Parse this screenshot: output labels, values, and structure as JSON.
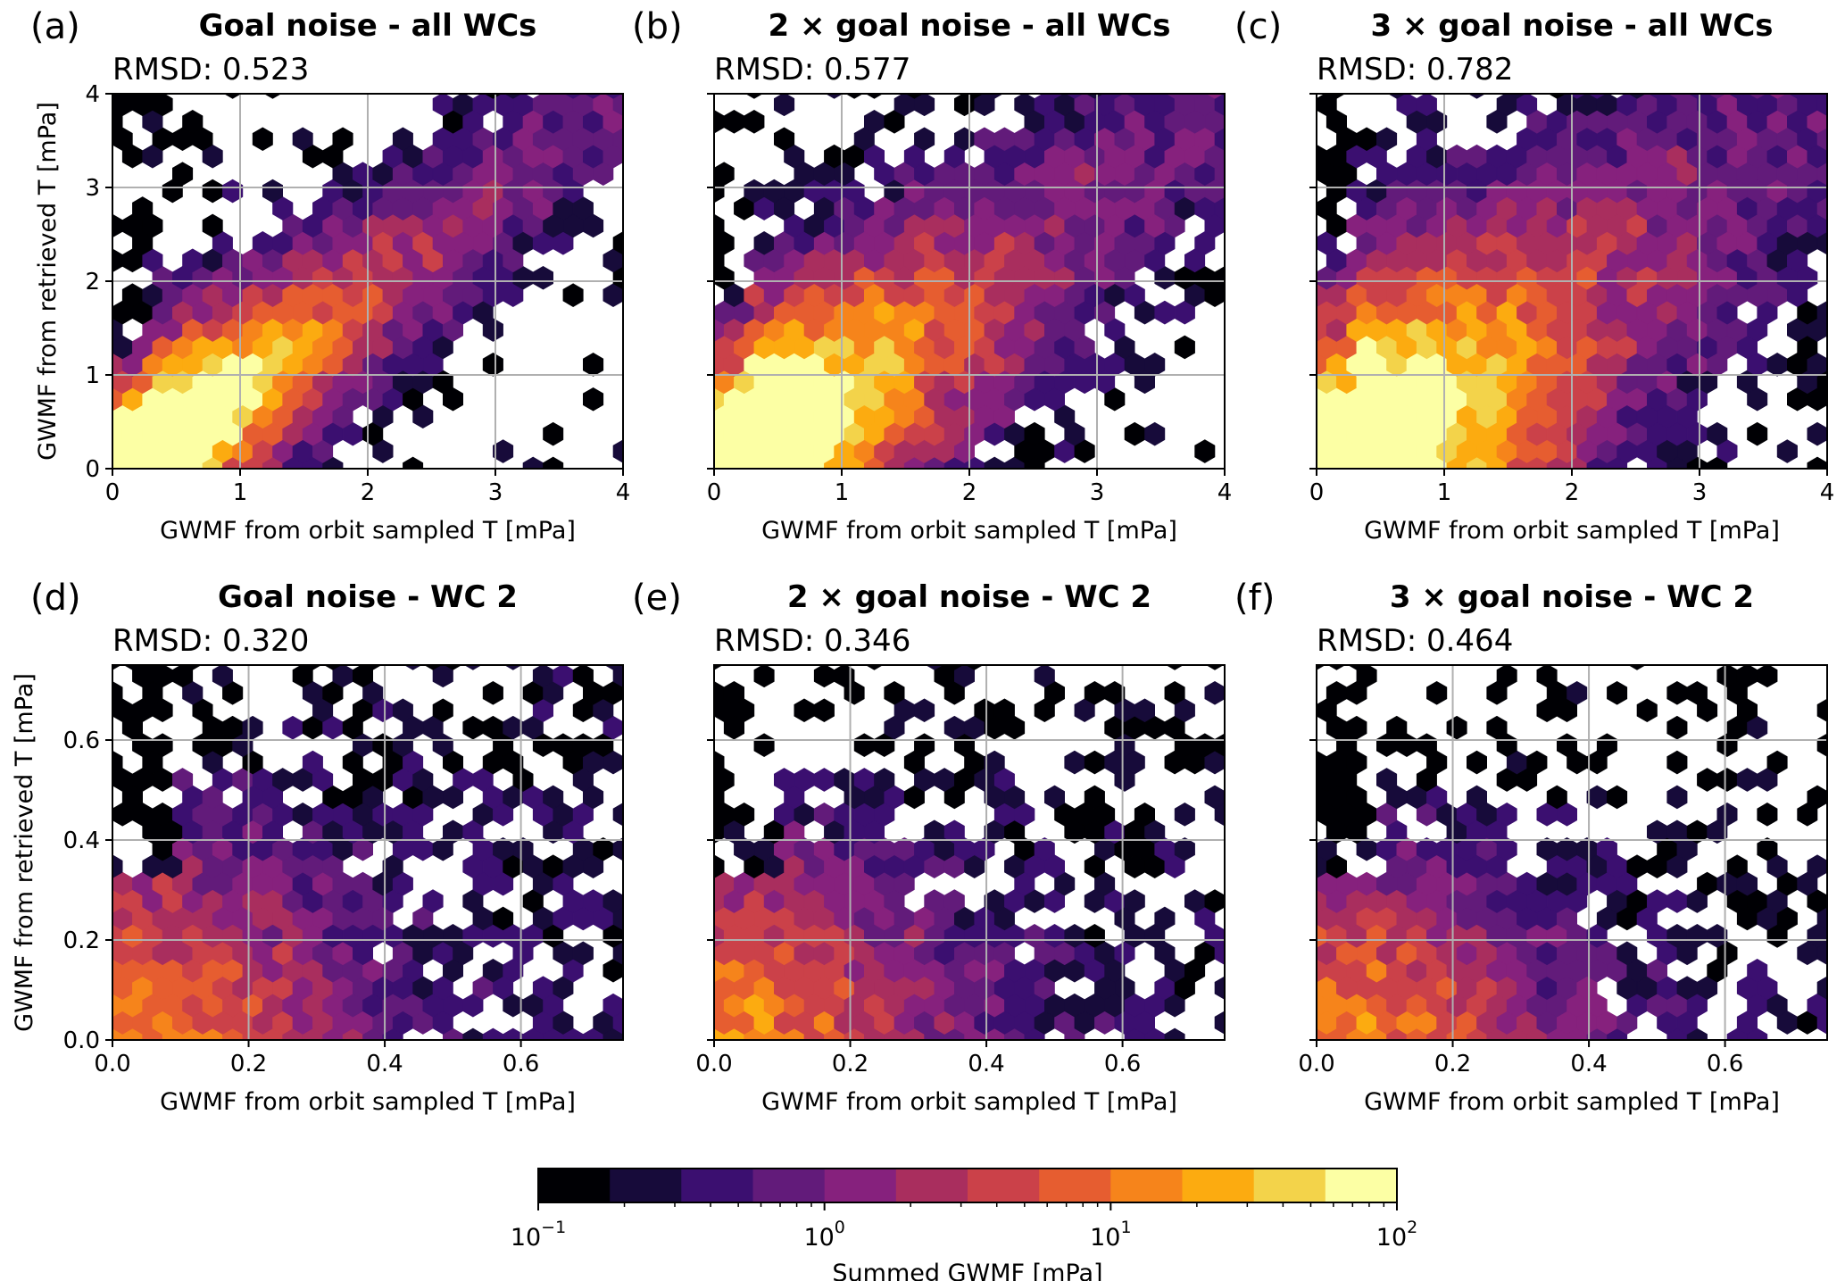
{
  "figure": {
    "colorbar": {
      "label": "Summed GWMF [mPa]",
      "scale": "log",
      "range": [
        0.1,
        100
      ],
      "tick_bases": [
        "10",
        "10",
        "10",
        "10"
      ],
      "tick_exponents": [
        "−1",
        "0",
        "1",
        "2"
      ],
      "bins": 12,
      "colors": [
        "#000004",
        "#170b3a",
        "#3b0f70",
        "#621b7a",
        "#86217d",
        "#a92e5e",
        "#cb4149",
        "#e65d30",
        "#f6841b",
        "#fcab10",
        "#f3d34a",
        "#fcffa4"
      ]
    }
  },
  "chart_data": [
    {
      "type": "heatmap",
      "panel": "(a)",
      "title": "Goal noise - all WCs",
      "annotation": "RMSD: 0.523",
      "xlabel": "GWMF from orbit sampled T [mPa]",
      "ylabel": "GWMF from retrieved T [mPa]",
      "xlim": [
        0,
        4
      ],
      "ylim": [
        0,
        4
      ],
      "xticks": [
        "0",
        "1",
        "2",
        "3",
        "4"
      ],
      "yticks": [
        "0",
        "1",
        "2",
        "3",
        "4"
      ],
      "grid": true,
      "rmsd": 0.523
    },
    {
      "type": "heatmap",
      "panel": "(b)",
      "title": "2 × goal noise - all WCs",
      "annotation": "RMSD: 0.577",
      "xlabel": "GWMF from orbit sampled T [mPa]",
      "ylabel": "",
      "xlim": [
        0,
        4
      ],
      "ylim": [
        0,
        4
      ],
      "xticks": [
        "0",
        "1",
        "2",
        "3",
        "4"
      ],
      "yticks": [],
      "grid": true,
      "rmsd": 0.577
    },
    {
      "type": "heatmap",
      "panel": "(c)",
      "title": "3 × goal noise - all WCs",
      "annotation": "RMSD: 0.782",
      "xlabel": "GWMF from orbit sampled T [mPa]",
      "ylabel": "",
      "xlim": [
        0,
        4
      ],
      "ylim": [
        0,
        4
      ],
      "xticks": [
        "0",
        "1",
        "2",
        "3",
        "4"
      ],
      "yticks": [],
      "grid": true,
      "rmsd": 0.782
    },
    {
      "type": "heatmap",
      "panel": "(d)",
      "title": "Goal noise - WC 2",
      "annotation": "RMSD: 0.320",
      "xlabel": "GWMF from orbit sampled T [mPa]",
      "ylabel": "GWMF from retrieved T [mPa]",
      "xlim": [
        0,
        0.75
      ],
      "ylim": [
        0,
        0.75
      ],
      "xticks": [
        "0.0",
        "0.2",
        "0.4",
        "0.6"
      ],
      "yticks": [
        "0.0",
        "0.2",
        "0.4",
        "0.6"
      ],
      "grid": true,
      "rmsd": 0.32
    },
    {
      "type": "heatmap",
      "panel": "(e)",
      "title": "2 × goal noise - WC 2",
      "annotation": "RMSD: 0.346",
      "xlabel": "GWMF from orbit sampled T [mPa]",
      "ylabel": "",
      "xlim": [
        0,
        0.75
      ],
      "ylim": [
        0,
        0.75
      ],
      "xticks": [
        "0.0",
        "0.2",
        "0.4",
        "0.6"
      ],
      "yticks": [],
      "grid": true,
      "rmsd": 0.346
    },
    {
      "type": "heatmap",
      "panel": "(f)",
      "title": "3 × goal noise - WC 2",
      "annotation": "RMSD: 0.464",
      "xlabel": "GWMF from orbit sampled T [mPa]",
      "ylabel": "",
      "xlim": [
        0,
        0.75
      ],
      "ylim": [
        0,
        0.75
      ],
      "xticks": [
        "0.0",
        "0.2",
        "0.4",
        "0.6"
      ],
      "yticks": [],
      "grid": true,
      "rmsd": 0.464
    }
  ]
}
